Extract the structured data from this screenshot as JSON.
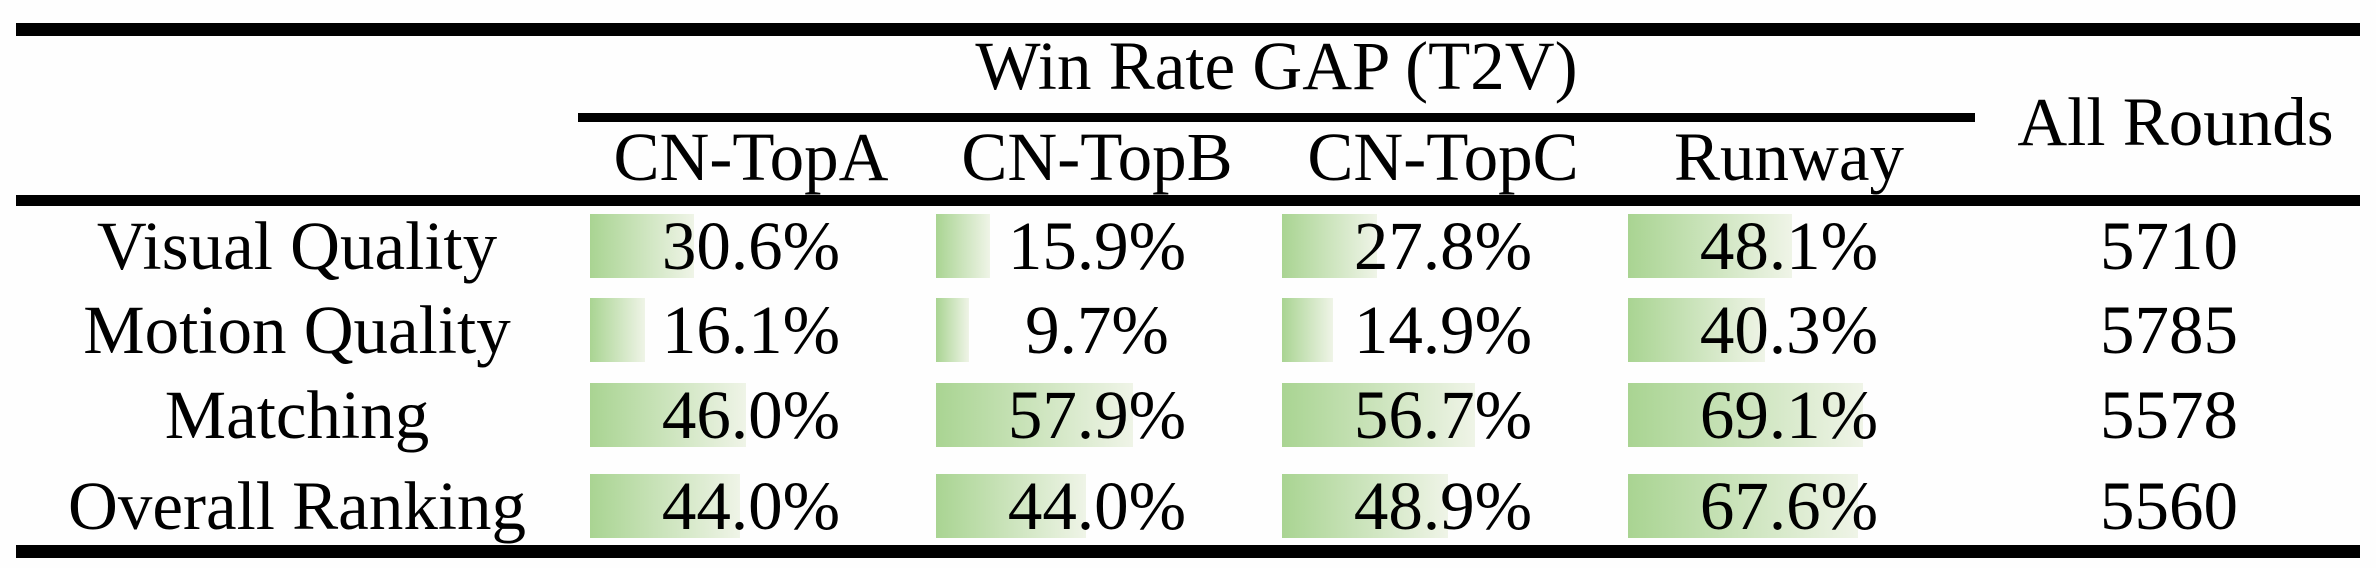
{
  "table": {
    "title": "Win Rate GAP (T2V)",
    "all_rounds_header": "All Rounds",
    "columns": [
      "CN-TopA",
      "CN-TopB",
      "CN-TopC",
      "Runway"
    ],
    "rows": [
      {
        "label": "Visual Quality",
        "cells": [
          {
            "pct": 30.6,
            "text": "30.6%"
          },
          {
            "pct": 15.9,
            "text": "15.9%"
          },
          {
            "pct": 27.8,
            "text": "27.8%"
          },
          {
            "pct": 48.1,
            "text": "48.1%"
          }
        ],
        "rounds": "5710"
      },
      {
        "label": "Motion Quality",
        "cells": [
          {
            "pct": 16.1,
            "text": "16.1%"
          },
          {
            "pct": 9.7,
            "text": "9.7%"
          },
          {
            "pct": 14.9,
            "text": "14.9%"
          },
          {
            "pct": 40.3,
            "text": "40.3%"
          }
        ],
        "rounds": "5785"
      },
      {
        "label": "Matching",
        "cells": [
          {
            "pct": 46.0,
            "text": "46.0%"
          },
          {
            "pct": 57.9,
            "text": "57.9%"
          },
          {
            "pct": 56.7,
            "text": "56.7%"
          },
          {
            "pct": 69.1,
            "text": "69.1%"
          }
        ],
        "rounds": "5578"
      },
      {
        "label": "Overall Ranking",
        "cells": [
          {
            "pct": 44.0,
            "text": "44.0%"
          },
          {
            "pct": 44.0,
            "text": "44.0%"
          },
          {
            "pct": 48.9,
            "text": "48.9%"
          },
          {
            "pct": 67.6,
            "text": "67.6%"
          }
        ],
        "rounds": "5560"
      }
    ]
  },
  "colors": {
    "bar_gradient_start": "#a9d492",
    "bar_gradient_end": "#eff4e7",
    "rule": "#000000"
  }
}
